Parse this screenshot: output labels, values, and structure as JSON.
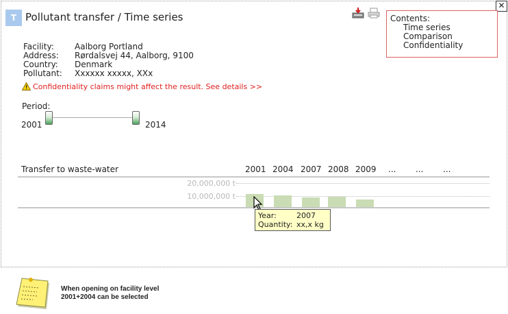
{
  "header": {
    "badge": "T",
    "title": "Pollutant transfer / Time series",
    "close_label": "✕"
  },
  "toolbar": {
    "download_icon": "download-icon",
    "print_icon": "print-icon"
  },
  "contents": {
    "heading": "Contents:",
    "items": [
      "Time series",
      "Comparison",
      "Confidentiality"
    ]
  },
  "facility": {
    "labels": [
      "Facility:",
      "Address:",
      "Country:",
      "Pollutant:"
    ],
    "values": [
      "Aalborg Portland",
      "Rørdalsvej 44, Aalborg, 9100",
      "Denmark",
      "Xxxxxx xxxxx, XXx"
    ]
  },
  "warning": {
    "text": "Confidentiality claims might affect the result. See details >>",
    "color": "#e02020"
  },
  "period": {
    "label": "Period:",
    "from": "2001",
    "to": "2014"
  },
  "chart": {
    "title": "Transfer to waste-water",
    "columns": [
      "2001",
      "2004",
      "2007",
      "2008",
      "2009",
      "...",
      "...",
      "..."
    ]
  },
  "chart_data": {
    "type": "bar",
    "categories": [
      "2001",
      "2004",
      "2007",
      "2008",
      "2009"
    ],
    "values": [
      11000000,
      9600000,
      8200000,
      8600000,
      6500000
    ],
    "ylim": [
      0,
      20000000
    ],
    "yticks": [
      "20,000,000 t",
      "10,000,000 t"
    ],
    "bar_color": "#c9dcb3"
  },
  "tooltip": {
    "year_label": "Year:",
    "year_value": "2007",
    "quantity_label": "Quantity:",
    "quantity_value": "xx,x kg"
  },
  "note": {
    "icon": "sticky-note-icon",
    "line1": "When opening on facility level",
    "line2": "2001+2004 can be selected"
  }
}
